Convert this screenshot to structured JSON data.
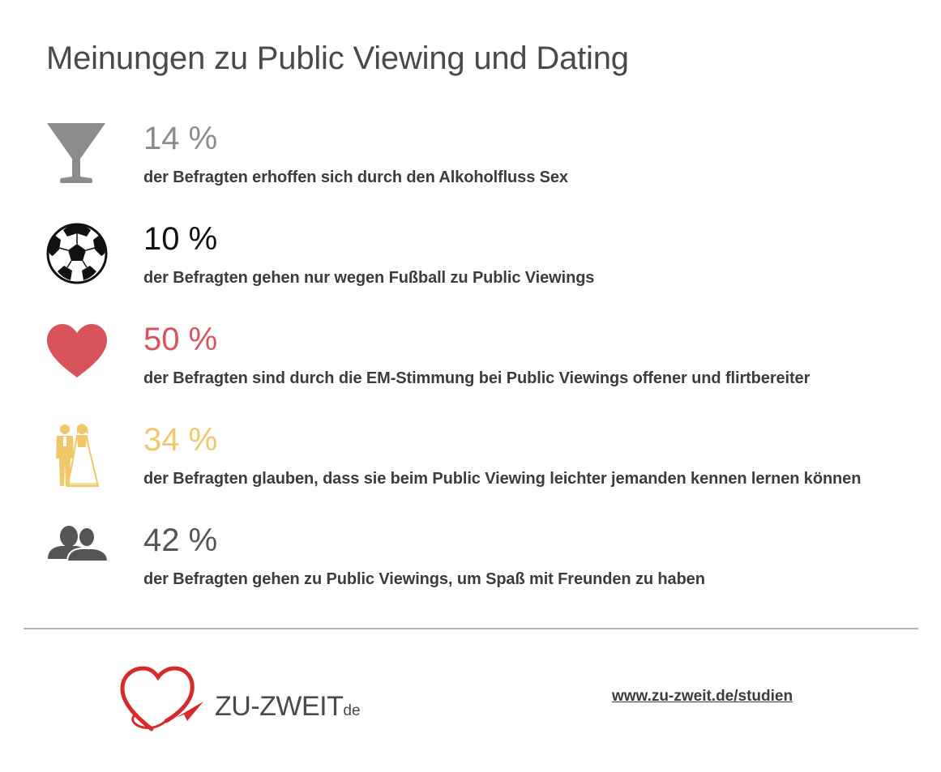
{
  "title": "Meinungen zu Public Viewing und Dating",
  "stats": [
    {
      "icon": "cocktail-glass-icon",
      "value": "14 %",
      "description": "der Befragten erhoffen sich durch den Alkoholfluss Sex",
      "color": "#8c8c8c"
    },
    {
      "icon": "soccer-ball-icon",
      "value": "10 %",
      "description": "der Befragten gehen nur wegen Fußball zu Public Viewings",
      "color": "#111111"
    },
    {
      "icon": "heart-icon",
      "value": "50 %",
      "description": "der Befragten sind durch die EM-Stimmung bei Public Viewings offener und flirtbereiter",
      "color": "#d9535a"
    },
    {
      "icon": "wedding-couple-icon",
      "value": "34 %",
      "description": "der Befragten glauben, dass sie beim Public Viewing leichter jemanden kennen lernen können",
      "color": "#efc86a"
    },
    {
      "icon": "friends-icon",
      "value": "42 %",
      "description": "der Befragten gehen zu Public Viewings, um Spaß mit Freunden zu haben",
      "color": "#555555"
    }
  ],
  "footer": {
    "brand_name": "ZU-ZWEIT",
    "brand_suffix": "de",
    "link": "www.zu-zweit.de/studien"
  },
  "colors": {
    "title": "#4a4a4a",
    "text": "#3c3c3c",
    "divider": "#b5b5b5",
    "brand_red": "#d62b2b"
  }
}
